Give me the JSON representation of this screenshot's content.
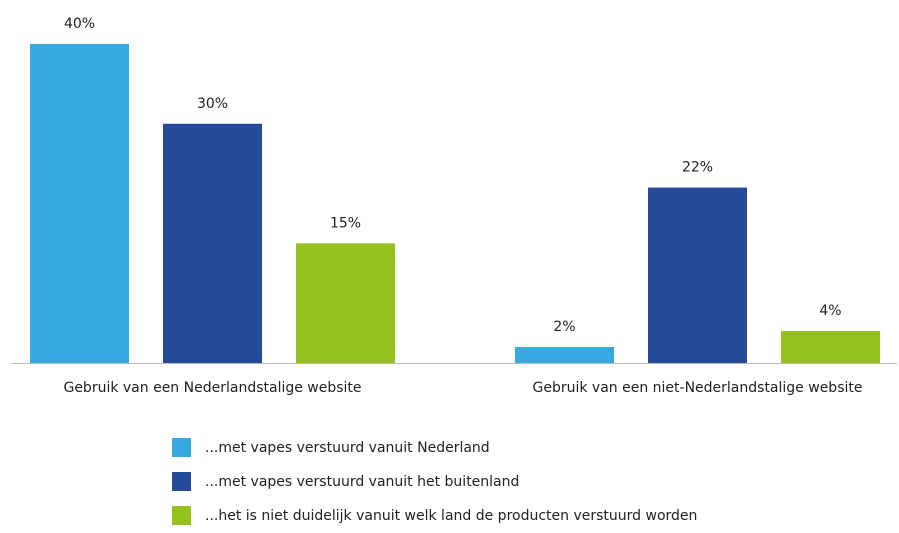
{
  "chart_data": {
    "type": "bar",
    "categories": [
      "Gebruik van een Nederlandstalige website",
      "Gebruik van een niet-Nederlandstalige website"
    ],
    "series": [
      {
        "name": "...met vapes verstuurd vanuit Nederland",
        "color": "#36a9e1",
        "values": [
          40,
          2
        ],
        "value_labels": [
          "40%",
          "2%"
        ]
      },
      {
        "name": "...met vapes verstuurd vanuit het buitenland",
        "color": "#244a98",
        "values": [
          30,
          22
        ],
        "value_labels": [
          "30%",
          "22%"
        ]
      },
      {
        "name": "...het is niet duidelijk vanuit welk land de producten verstuurd worden",
        "color": "#95c11f",
        "values": [
          15,
          4
        ],
        "value_labels": [
          "15%",
          "4%"
        ]
      }
    ]
  }
}
